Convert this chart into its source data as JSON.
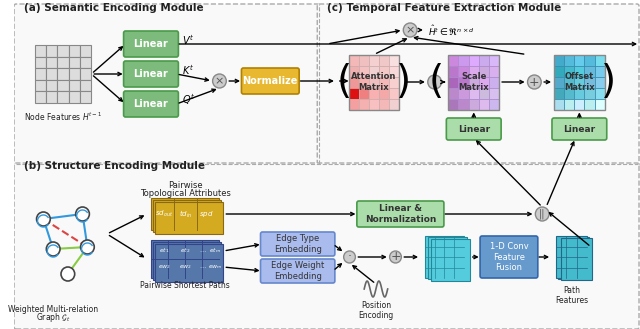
{
  "title": "",
  "bg_color": "#f5f5f5",
  "panel_a_label": "(a) Semantic Encoding Module",
  "panel_b_label": "(b) Structure Encoding Module",
  "panel_c_label": "(c) Temporal Feature Extraction Module",
  "linear_color": "#7fc97f",
  "linear_dark": "#4a9a4a",
  "normalize_color": "#f0c040",
  "normalize_dark": "#c09000",
  "linear2_color": "#aaddaa",
  "linear2_dark": "#5aaa5a",
  "gold_color": "#d4aa20",
  "blue_color": "#4488cc",
  "teal_color": "#20aaaa",
  "concat_color": "#8888cc",
  "conv_color": "#6699cc",
  "path_color": "#44aacc",
  "edge_embed_color": "#aabbee",
  "topo_color": "#ccaa44",
  "gray_circle": "#cccccc"
}
